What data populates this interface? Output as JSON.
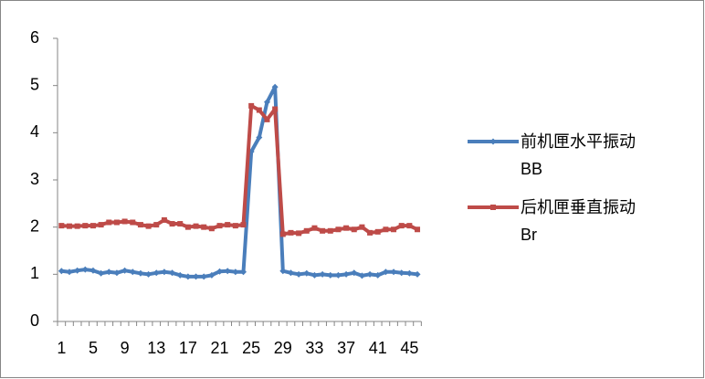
{
  "chart_data": {
    "type": "line",
    "categories": [
      1,
      null,
      null,
      null,
      5,
      null,
      null,
      null,
      9,
      null,
      null,
      null,
      13,
      null,
      null,
      null,
      17,
      null,
      null,
      null,
      21,
      null,
      null,
      null,
      25,
      null,
      null,
      null,
      29,
      null,
      null,
      null,
      33,
      null,
      null,
      null,
      37,
      null,
      null,
      null,
      41,
      null,
      null,
      null,
      45,
      null
    ],
    "series": [
      {
        "name": "前机匣水平振动BB",
        "color": "#4a7ebb",
        "marker": "diamond",
        "values": [
          1.07,
          1.05,
          1.08,
          1.1,
          1.08,
          1.02,
          1.05,
          1.03,
          1.08,
          1.05,
          1.02,
          1.0,
          1.03,
          1.05,
          1.03,
          0.98,
          0.95,
          0.95,
          0.95,
          0.98,
          1.06,
          1.07,
          1.05,
          1.05,
          3.6,
          3.9,
          4.65,
          4.97,
          1.07,
          1.03,
          1.0,
          1.02,
          0.98,
          1.0,
          0.98,
          0.98,
          1.0,
          1.03,
          0.97,
          1.0,
          0.98,
          1.05,
          1.05,
          1.03,
          1.02,
          1.0
        ]
      },
      {
        "name": "后机匣垂直振动Br",
        "color": "#be4b48",
        "marker": "square",
        "values": [
          2.03,
          2.02,
          2.02,
          2.03,
          2.03,
          2.05,
          2.1,
          2.1,
          2.12,
          2.1,
          2.05,
          2.02,
          2.05,
          2.15,
          2.07,
          2.07,
          2.0,
          2.02,
          2.0,
          1.97,
          2.03,
          2.05,
          2.03,
          2.05,
          4.57,
          4.48,
          4.28,
          4.5,
          1.85,
          1.88,
          1.87,
          1.92,
          1.98,
          1.92,
          1.92,
          1.95,
          1.98,
          1.95,
          2.0,
          1.88,
          1.9,
          1.95,
          1.95,
          2.03,
          2.03,
          1.95
        ]
      }
    ],
    "ylim": [
      0,
      6
    ],
    "yticks": [
      0,
      1,
      2,
      3,
      4,
      5,
      6
    ],
    "grid": false,
    "legend": "right"
  }
}
